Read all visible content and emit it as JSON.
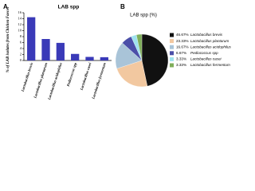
{
  "chart_data": [
    {
      "type": "bar",
      "panel": "A",
      "title": "LAB spp",
      "y_label": "% of LAB isolates from Chicken Faeces",
      "categories": [
        "Lactobacillus brevis",
        "Lactobacillus plantarum",
        "Lactobacillus acidophilus",
        "Pediococcus spp",
        "Lactobacillus casei",
        "Lactobacillus fermentum"
      ],
      "values": [
        14.5,
        7.2,
        5.9,
        2.2,
        1.2,
        1.1
      ],
      "color": "#3a3ab8",
      "ylim": [
        0,
        16
      ],
      "yticks": [
        0,
        2,
        4,
        6,
        8,
        10,
        12,
        14,
        16
      ]
    },
    {
      "type": "pie",
      "panel": "B",
      "title": "LAB spp (%)",
      "categories": [
        "Lactobacillus brevis",
        "Lactobacillus plantarum",
        "Lactobacillus acidophilus",
        "Pediococcus spp",
        "Lactobacillus casei",
        "Lactobacillus fermentum"
      ],
      "values": [
        46.67,
        23.33,
        16.67,
        6.67,
        3.33,
        3.33
      ],
      "value_labels": [
        "46.67%",
        "23.33%",
        "16.67%",
        "6.67%",
        "3.33%",
        "3.33%"
      ],
      "colors": [
        "#111111",
        "#f2c8a0",
        "#a9c4d8",
        "#4b4fa8",
        "#9fe3ee",
        "#7fae5a"
      ]
    }
  ]
}
